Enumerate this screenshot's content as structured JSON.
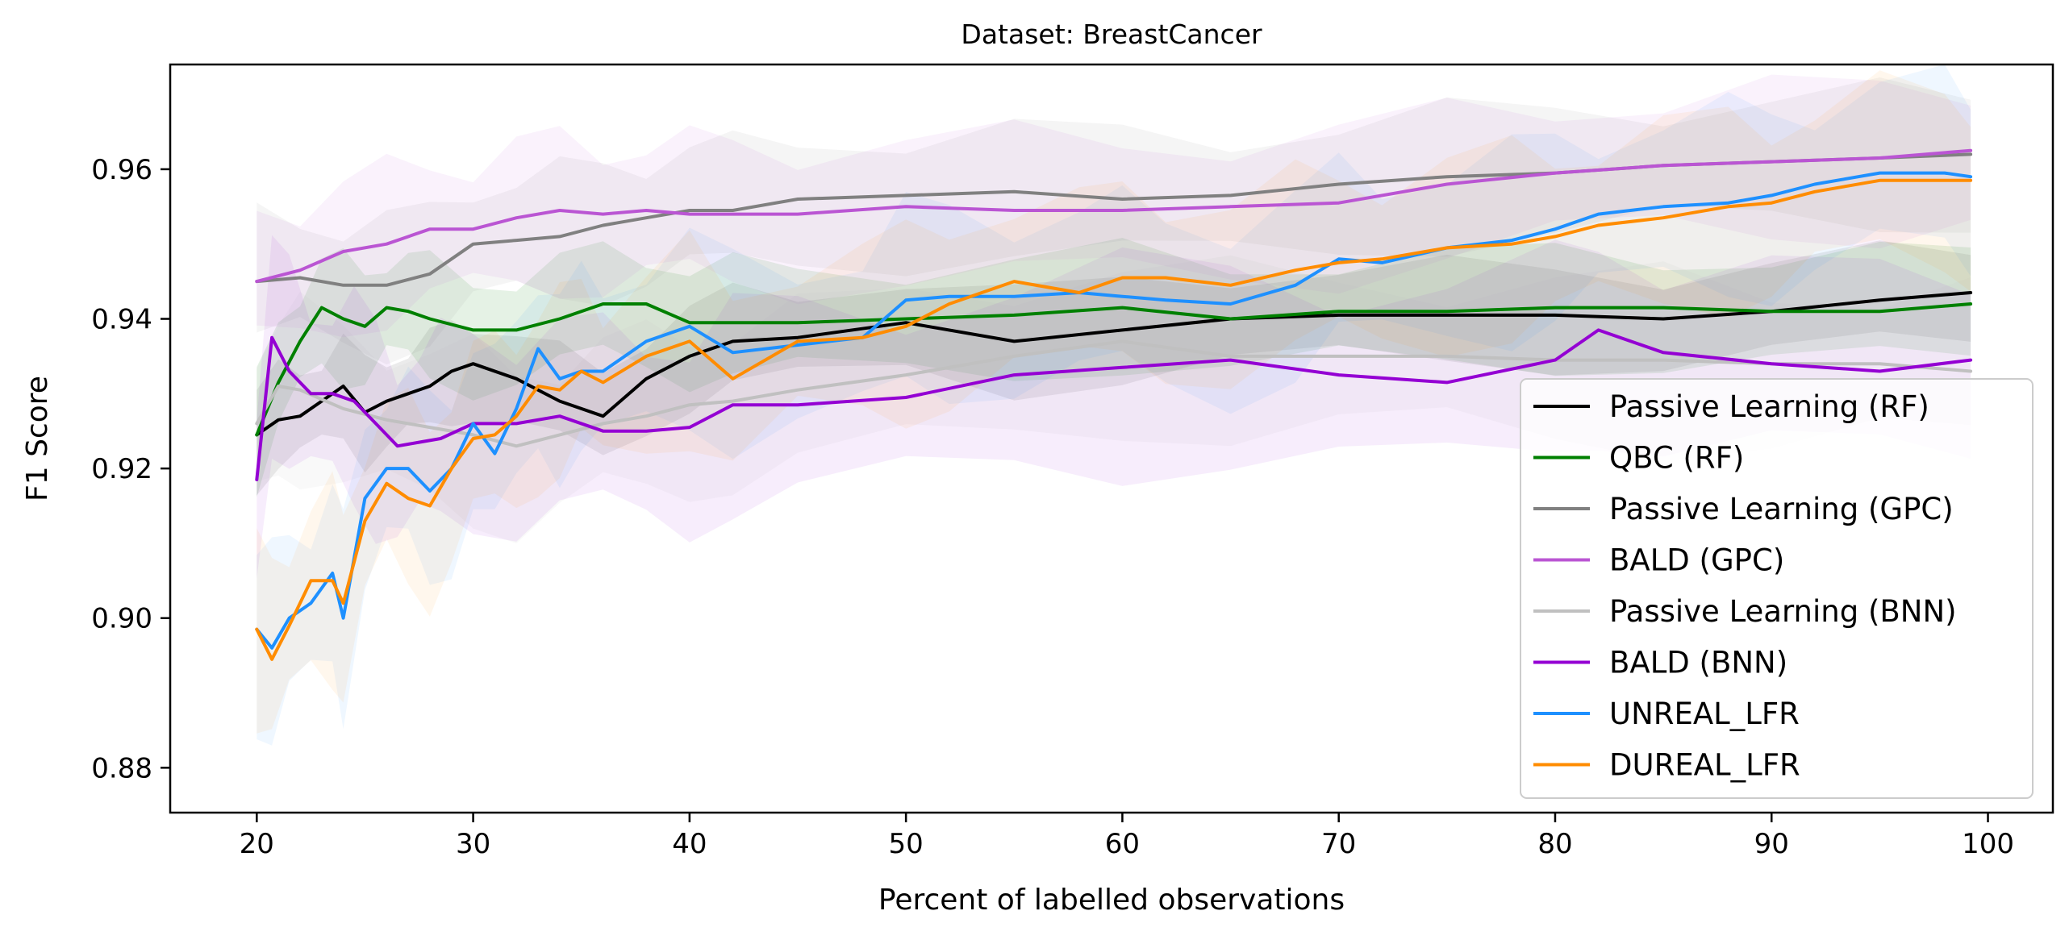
{
  "chart_data": {
    "type": "line",
    "title": "Dataset: BreastCancer",
    "xlabel": "Percent of labelled observations",
    "ylabel": "F1 Score",
    "xlim": [
      16,
      103
    ],
    "ylim": [
      0.874,
      0.974
    ],
    "xticks": [
      20,
      30,
      40,
      50,
      60,
      70,
      80,
      90,
      100
    ],
    "yticks": [
      0.88,
      0.9,
      0.92,
      0.94,
      0.96
    ],
    "ytick_labels": [
      "0.88",
      "0.90",
      "0.92",
      "0.94",
      "0.96"
    ],
    "grid": false,
    "legend_position": "lower-right",
    "series": [
      {
        "name": "Passive Learning (RF)",
        "color": "#000000",
        "band_opacity": 0.08,
        "band_width": 0.006,
        "x": [
          20,
          21,
          22,
          23,
          24,
          25,
          26,
          27,
          28,
          29,
          30,
          32,
          34,
          36,
          38,
          40,
          42,
          45,
          50,
          55,
          60,
          65,
          70,
          75,
          80,
          85,
          90,
          95,
          99.2
        ],
        "y": [
          0.9245,
          0.9265,
          0.927,
          0.929,
          0.931,
          0.9275,
          0.929,
          0.93,
          0.931,
          0.933,
          0.934,
          0.932,
          0.929,
          0.927,
          0.932,
          0.935,
          0.937,
          0.9375,
          0.9395,
          0.937,
          0.9385,
          0.94,
          0.9405,
          0.9405,
          0.9405,
          0.94,
          0.941,
          0.9425,
          0.9435
        ]
      },
      {
        "name": "QBC (RF)",
        "color": "#008000",
        "band_opacity": 0.1,
        "band_width": 0.007,
        "x": [
          20,
          21,
          22,
          23,
          24,
          25,
          26,
          27,
          28,
          30,
          32,
          34,
          36,
          38,
          40,
          42,
          45,
          50,
          55,
          60,
          65,
          70,
          75,
          80,
          85,
          90,
          95,
          99.2
        ],
        "y": [
          0.9245,
          0.9315,
          0.937,
          0.9415,
          0.94,
          0.939,
          0.9415,
          0.941,
          0.94,
          0.9385,
          0.9385,
          0.94,
          0.942,
          0.942,
          0.9395,
          0.9395,
          0.9395,
          0.94,
          0.9405,
          0.9415,
          0.94,
          0.941,
          0.941,
          0.9415,
          0.9415,
          0.941,
          0.941,
          0.942
        ]
      },
      {
        "name": "Passive Learning (GPC)",
        "color": "#808080",
        "band_opacity": 0.08,
        "band_width": 0.008,
        "x": [
          20,
          22,
          24,
          26,
          28,
          30,
          32,
          34,
          36,
          38,
          40,
          42,
          45,
          50,
          55,
          60,
          65,
          70,
          75,
          80,
          85,
          90,
          95,
          99.2
        ],
        "y": [
          0.945,
          0.9455,
          0.9445,
          0.9445,
          0.946,
          0.95,
          0.9505,
          0.951,
          0.9525,
          0.9535,
          0.9545,
          0.9545,
          0.956,
          0.9565,
          0.957,
          0.956,
          0.9565,
          0.958,
          0.959,
          0.9595,
          0.9605,
          0.961,
          0.9615,
          0.962
        ]
      },
      {
        "name": "BALD (GPC)",
        "color": "#BA55D3",
        "band_opacity": 0.08,
        "band_width": 0.009,
        "x": [
          20,
          22,
          24,
          26,
          28,
          30,
          32,
          34,
          36,
          38,
          40,
          42,
          45,
          50,
          55,
          60,
          65,
          70,
          75,
          80,
          85,
          90,
          95,
          99.2
        ],
        "y": [
          0.945,
          0.9465,
          0.949,
          0.95,
          0.952,
          0.952,
          0.9535,
          0.9545,
          0.954,
          0.9545,
          0.954,
          0.954,
          0.954,
          0.955,
          0.9545,
          0.9545,
          0.955,
          0.9555,
          0.958,
          0.9595,
          0.9605,
          0.961,
          0.9615,
          0.9625
        ]
      },
      {
        "name": "Passive Learning (BNN)",
        "color": "#C0C0C0",
        "band_opacity": 0.1,
        "band_width": 0.01,
        "x": [
          20,
          21,
          22,
          24,
          26,
          28,
          30,
          32,
          34,
          36,
          38,
          40,
          42,
          45,
          50,
          55,
          60,
          65,
          70,
          75,
          80,
          85,
          90,
          95,
          99.2
        ],
        "y": [
          0.926,
          0.931,
          0.9305,
          0.928,
          0.9265,
          0.9255,
          0.9245,
          0.923,
          0.9245,
          0.926,
          0.927,
          0.9285,
          0.929,
          0.9305,
          0.9325,
          0.935,
          0.937,
          0.935,
          0.935,
          0.935,
          0.9345,
          0.9345,
          0.934,
          0.934,
          0.933
        ]
      },
      {
        "name": "BALD (BNN)",
        "color": "#9400D3",
        "band_opacity": 0.07,
        "band_width": 0.012,
        "x": [
          20,
          20.7,
          21.5,
          22.5,
          23.5,
          24.5,
          25.5,
          26.5,
          27.5,
          28.5,
          30,
          32,
          34,
          36,
          38,
          40,
          42,
          45,
          50,
          55,
          60,
          65,
          70,
          75,
          80,
          82,
          85,
          90,
          95,
          99.2
        ],
        "y": [
          0.9185,
          0.9375,
          0.933,
          0.93,
          0.93,
          0.929,
          0.926,
          0.923,
          0.9235,
          0.924,
          0.926,
          0.926,
          0.927,
          0.925,
          0.925,
          0.9255,
          0.9285,
          0.9285,
          0.9295,
          0.9325,
          0.9335,
          0.9345,
          0.9325,
          0.9315,
          0.9345,
          0.9385,
          0.9355,
          0.934,
          0.933,
          0.9345
        ]
      },
      {
        "name": "UNREAL_LFR",
        "color": "#1E90FF",
        "band_opacity": 0.07,
        "band_width": 0.011,
        "x": [
          20,
          20.7,
          21.5,
          22.5,
          23.5,
          24,
          25,
          26,
          27,
          28,
          29,
          30,
          31,
          32,
          33,
          34,
          35,
          36,
          38,
          40,
          42,
          45,
          48,
          50,
          52,
          55,
          58,
          60,
          62,
          65,
          68,
          70,
          72,
          75,
          78,
          80,
          82,
          85,
          88,
          90,
          92,
          95,
          98,
          99.2
        ],
        "y": [
          0.8985,
          0.896,
          0.9,
          0.902,
          0.906,
          0.9,
          0.916,
          0.92,
          0.92,
          0.917,
          0.92,
          0.926,
          0.922,
          0.928,
          0.936,
          0.932,
          0.933,
          0.933,
          0.937,
          0.939,
          0.9355,
          0.9365,
          0.9375,
          0.9425,
          0.943,
          0.943,
          0.9435,
          0.943,
          0.9425,
          0.942,
          0.9445,
          0.948,
          0.9475,
          0.9495,
          0.9505,
          0.952,
          0.954,
          0.955,
          0.9555,
          0.9565,
          0.958,
          0.9595,
          0.9595,
          0.959
        ]
      },
      {
        "name": "DUREAL_LFR",
        "color": "#FF8C00",
        "band_opacity": 0.07,
        "band_width": 0.011,
        "x": [
          20,
          20.7,
          21.5,
          22.5,
          23.5,
          24,
          25,
          26,
          27,
          28,
          29,
          30,
          31,
          32,
          33,
          34,
          35,
          36,
          38,
          40,
          42,
          45,
          48,
          50,
          52,
          55,
          58,
          60,
          62,
          65,
          68,
          70,
          72,
          75,
          78,
          80,
          82,
          85,
          88,
          90,
          92,
          95,
          98,
          99.2
        ],
        "y": [
          0.8985,
          0.8945,
          0.899,
          0.905,
          0.905,
          0.902,
          0.913,
          0.918,
          0.916,
          0.915,
          0.92,
          0.924,
          0.9245,
          0.927,
          0.931,
          0.9305,
          0.933,
          0.9315,
          0.935,
          0.937,
          0.932,
          0.937,
          0.9375,
          0.939,
          0.942,
          0.945,
          0.9435,
          0.9455,
          0.9455,
          0.9445,
          0.9465,
          0.9475,
          0.948,
          0.9495,
          0.95,
          0.951,
          0.9525,
          0.9535,
          0.955,
          0.9555,
          0.957,
          0.9585,
          0.9585,
          0.9585
        ]
      }
    ]
  }
}
